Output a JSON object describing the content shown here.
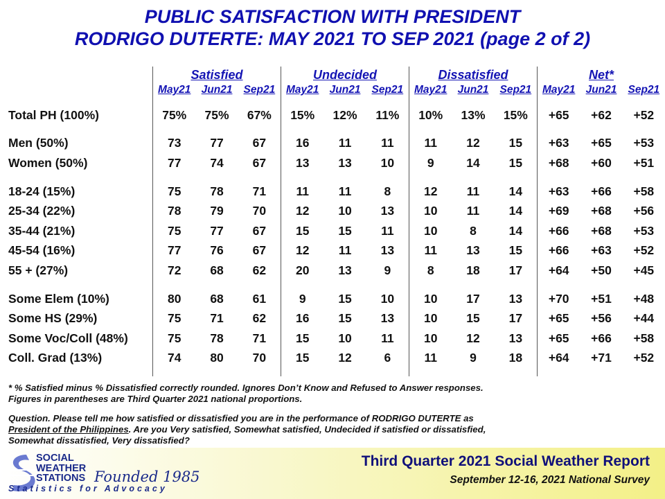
{
  "title": {
    "line1": "PUBLIC SATISFACTION  WITH PRESIDENT",
    "line2": "RODRIGO DUTERTE: MAY 2021 TO SEP 2021 (page 2 of 2)"
  },
  "chart_data": {
    "type": "table",
    "groups": [
      "Satisfied",
      "Undecided",
      "Dissatisfied",
      "Net*"
    ],
    "periods": [
      "May21",
      "Jun21",
      "Sep21"
    ],
    "rows": [
      {
        "label": "Total PH (100%)",
        "values": [
          "75%",
          "75%",
          "67%",
          "15%",
          "12%",
          "11%",
          "10%",
          "13%",
          "15%",
          "+65",
          "+62",
          "+52"
        ]
      },
      {
        "label": "Men (50%)",
        "values": [
          "73",
          "77",
          "67",
          "16",
          "11",
          "11",
          "11",
          "12",
          "15",
          "+63",
          "+65",
          "+53"
        ]
      },
      {
        "label": "Women (50%)",
        "values": [
          "77",
          "74",
          "67",
          "13",
          "13",
          "10",
          "9",
          "14",
          "15",
          "+68",
          "+60",
          "+51"
        ]
      },
      {
        "label": "18-24 (15%)",
        "values": [
          "75",
          "78",
          "71",
          "11",
          "11",
          "8",
          "12",
          "11",
          "14",
          "+63",
          "+66",
          "+58"
        ]
      },
      {
        "label": "25-34 (22%)",
        "values": [
          "78",
          "79",
          "70",
          "12",
          "10",
          "13",
          "10",
          "11",
          "14",
          "+69",
          "+68",
          "+56"
        ]
      },
      {
        "label": "35-44 (21%)",
        "values": [
          "75",
          "77",
          "67",
          "15",
          "15",
          "11",
          "10",
          "8",
          "14",
          "+66",
          "+68",
          "+53"
        ]
      },
      {
        "label": "45-54 (16%)",
        "values": [
          "77",
          "76",
          "67",
          "12",
          "11",
          "13",
          "11",
          "13",
          "15",
          "+66",
          "+63",
          "+52"
        ]
      },
      {
        "label": "55 + (27%)",
        "values": [
          "72",
          "68",
          "62",
          "20",
          "13",
          "9",
          "8",
          "18",
          "17",
          "+64",
          "+50",
          "+45"
        ]
      },
      {
        "label": "Some Elem (10%)",
        "values": [
          "80",
          "68",
          "61",
          "9",
          "15",
          "10",
          "10",
          "17",
          "13",
          "+70",
          "+51",
          "+48"
        ]
      },
      {
        "label": "Some HS (29%)",
        "values": [
          "75",
          "71",
          "62",
          "16",
          "15",
          "13",
          "10",
          "15",
          "17",
          "+65",
          "+56",
          "+44"
        ]
      },
      {
        "label": "Some Voc/Coll (48%)",
        "values": [
          "75",
          "78",
          "71",
          "15",
          "10",
          "11",
          "10",
          "12",
          "13",
          "+65",
          "+66",
          "+58"
        ]
      },
      {
        "label": "Coll. Grad (13%)",
        "values": [
          "74",
          "80",
          "70",
          "15",
          "12",
          "6",
          "11",
          "9",
          "18",
          "+64",
          "+71",
          "+52"
        ]
      }
    ]
  },
  "notes": {
    "footnote1": "* % Satisfied  minus  % Dissatisfied  correctly  rounded.  Ignores  Don’t Know  and Refused  to Answer  responses.",
    "footnote2": "Figures  in parentheses  are Third Quarter  2021 national  proportions.",
    "question1": "Question.  Please tell me how satisfied  or dissatisfied  you are in the performance  of RODRIGO DUTERTE as",
    "question2a": "President  of the Philippines",
    "question2b": ".  Are you Very satisfied,  Somewhat satisfied,  Undecided  if satisfied  or dissatisfied,",
    "question3": "Somewhat  dissatisfied,  Very dissatisfied?"
  },
  "footer": {
    "org_line1": "SOCIAL",
    "org_line2": "WEATHER",
    "org_line3": "STATIONS",
    "founded": "Founded 1985",
    "tagline": "Statistics for Advocacy",
    "report_title": "Third Quarter 2021 Social Weather Report",
    "report_subtitle": "September 12-16, 2021 National Survey"
  },
  "colors": {
    "title": "#1010b0",
    "header": "#1414b4",
    "logo": "#1a2a8a",
    "footer_band": "#f3f087"
  }
}
